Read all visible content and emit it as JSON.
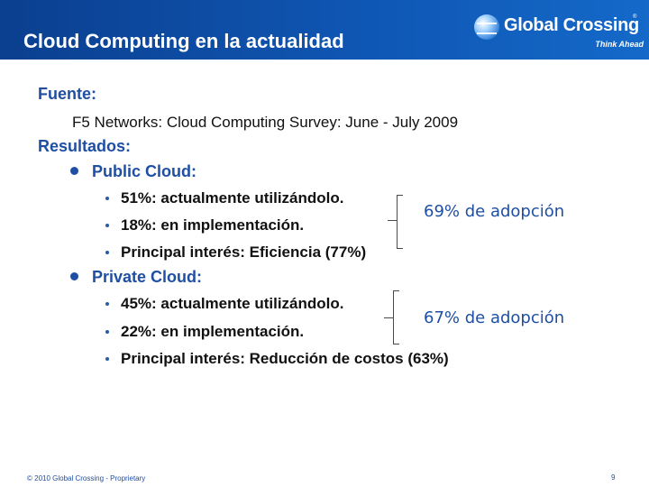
{
  "header": {
    "title": "Cloud Computing en la actualidad",
    "logo_text": "Global Crossing",
    "logo_reg": "®",
    "tagline": "Think Ahead"
  },
  "body": {
    "source_heading": "Fuente:",
    "source_text": "F5 Networks: Cloud Computing Survey: June - July 2009",
    "results_heading": "Resultados:",
    "sections": [
      {
        "label": "Public Cloud:",
        "items": [
          "51%: actualmente utilizándolo.",
          "18%: en implementación.",
          "Principal interés: Eficiencia (77%)"
        ],
        "adoption": "69% de adopción"
      },
      {
        "label": "Private Cloud:",
        "items": [
          "45%: actualmente utilizándolo.",
          "22%: en implementación.",
          "Principal interés: Reducción de costos (63%)"
        ],
        "adoption": "67% de adopción"
      }
    ]
  },
  "footer": {
    "copyright": "© 2010 Global Crossing - Proprietary",
    "page_number": "9"
  },
  "colors": {
    "header_blue": "#0f56b3",
    "heading_blue": "#1f4fa3",
    "text": "#111111"
  }
}
